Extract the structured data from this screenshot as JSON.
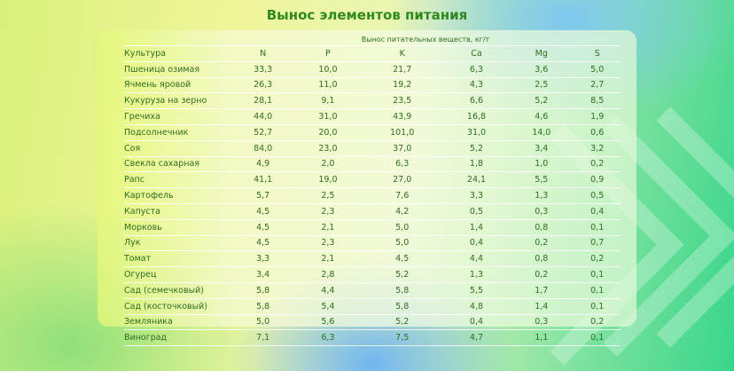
{
  "title": "Вынос элементов питания",
  "table": {
    "group_header": "Вынос питательных веществ, кг/т",
    "columns": [
      "Культура",
      "N",
      "P",
      "K",
      "Ca",
      "Mg",
      "S"
    ],
    "rows": [
      [
        "Пшеница озимая",
        "33,3",
        "10,0",
        "21,7",
        "6,3",
        "3,6",
        "5,0"
      ],
      [
        "Ячмень яровой",
        "26,3",
        "11,0",
        "19,2",
        "4,3",
        "2,5",
        "2,7"
      ],
      [
        "Кукуруза на зерно",
        "28,1",
        "9,1",
        "23,5",
        "6,6",
        "5,2",
        "8,5"
      ],
      [
        "Гречиха",
        "44,0",
        "31,0",
        "43,9",
        "16,8",
        "4,6",
        "1,9"
      ],
      [
        "Подсолнечник",
        "52,7",
        "20,0",
        "101,0",
        "31,0",
        "14,0",
        "0,6"
      ],
      [
        "Соя",
        "84,0",
        "23,0",
        "37,0",
        "5,2",
        "3,4",
        "3,2"
      ],
      [
        "Свекла сахарная",
        "4,9",
        "2,0",
        "6,3",
        "1,8",
        "1,0",
        "0,2"
      ],
      [
        "Рапс",
        "41,1",
        "19,0",
        "27,0",
        "24,1",
        "5,5",
        "0,9"
      ],
      [
        "Картофель",
        "5,7",
        "2,5",
        "7,6",
        "3,3",
        "1,3",
        "0,5"
      ],
      [
        "Капуста",
        "4,5",
        "2,3",
        "4,2",
        "0,5",
        "0,3",
        "0,4"
      ],
      [
        "Морковь",
        "4,5",
        "2,1",
        "5,0",
        "1,4",
        "0,8",
        "0,1"
      ],
      [
        "Лук",
        "4,5",
        "2,3",
        "5,0",
        "0,4",
        "0,2",
        "0,7"
      ],
      [
        "Томат",
        "3,3",
        "2,1",
        "4,5",
        "4,4",
        "0,8",
        "0,2"
      ],
      [
        "Огурец",
        "3,4",
        "2,8",
        "5,2",
        "1,3",
        "0,2",
        "0,1"
      ],
      [
        "Сад (семечковый)",
        "5,8",
        "4,4",
        "5,8",
        "5,5",
        "1,7",
        "0,1"
      ],
      [
        "Сад (косточковый)",
        "5,8",
        "5,4",
        "5,8",
        "4,8",
        "1,4",
        "0,1"
      ],
      [
        "Земляника",
        "5,0",
        "5,6",
        "5,2",
        "0,4",
        "0,3",
        "0,2"
      ],
      [
        "Виноград",
        "7,1",
        "6,3",
        "7,5",
        "4,7",
        "1,1",
        "0,1"
      ]
    ]
  }
}
